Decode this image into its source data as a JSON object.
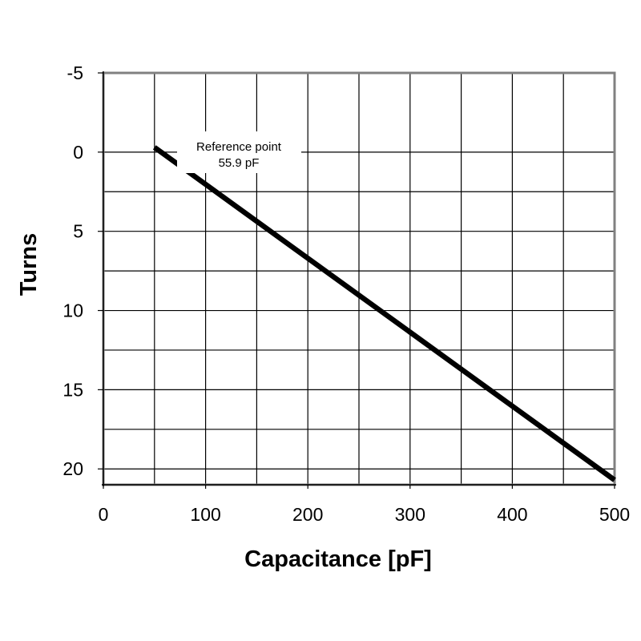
{
  "chart_data": {
    "type": "line",
    "xlabel": "Capacitance [pF]",
    "ylabel": "Turns",
    "xlim": [
      0,
      500
    ],
    "ylim": [
      -5,
      21
    ],
    "y_inverted": true,
    "grid": true,
    "x_ticks": [
      "0",
      "100",
      "200",
      "300",
      "400",
      "500"
    ],
    "y_ticks": [
      "-5",
      "0",
      "5",
      "10",
      "15",
      "20"
    ],
    "x_tick_values": [
      0,
      100,
      200,
      300,
      400,
      500
    ],
    "y_tick_values": [
      -5,
      0,
      5,
      10,
      15,
      20
    ],
    "x_gridlines": [
      0,
      50,
      100,
      150,
      200,
      250,
      300,
      350,
      400,
      450,
      500
    ],
    "y_gridlines": [
      -5,
      0,
      2.5,
      5,
      7.5,
      10,
      12.5,
      15,
      17.5,
      20
    ],
    "series": [
      {
        "x": [
          50,
          500
        ],
        "y": [
          -0.3,
          20.7
        ],
        "color": "#000000"
      }
    ],
    "annotation": {
      "line1": "Reference point",
      "line2": "55.9 pF",
      "x": 55.9,
      "y": 0
    },
    "colors": {
      "line": "#000000",
      "grid": "#000000",
      "frame": "#808080"
    }
  }
}
